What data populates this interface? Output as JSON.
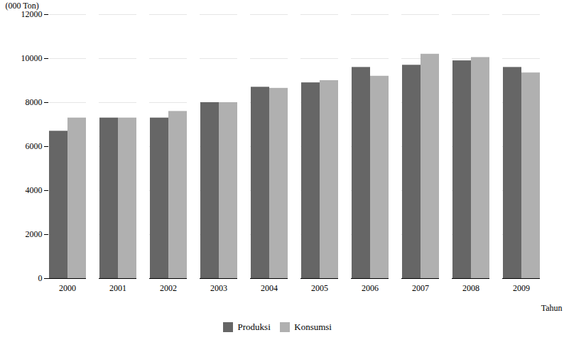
{
  "chart_data": {
    "type": "bar",
    "categories": [
      "2000",
      "2001",
      "2002",
      "2003",
      "2004",
      "2005",
      "2006",
      "2007",
      "2008",
      "2009"
    ],
    "series": [
      {
        "name": "Produksi",
        "color": "#666666",
        "values": [
          6700,
          7300,
          7300,
          8000,
          8700,
          8900,
          9600,
          9700,
          9900,
          9600
        ]
      },
      {
        "name": "Konsumsi",
        "color": "#b0b0b0",
        "values": [
          7300,
          7300,
          7600,
          8000,
          8650,
          9000,
          9200,
          10200,
          10050,
          9350
        ]
      }
    ],
    "xlabel": "Tahun",
    "ylabel": "(000 Ton)",
    "ylim": [
      0,
      12000
    ],
    "yticks": [
      0,
      2000,
      4000,
      6000,
      8000,
      10000,
      12000
    ],
    "grid": true,
    "legend": "bottom"
  }
}
